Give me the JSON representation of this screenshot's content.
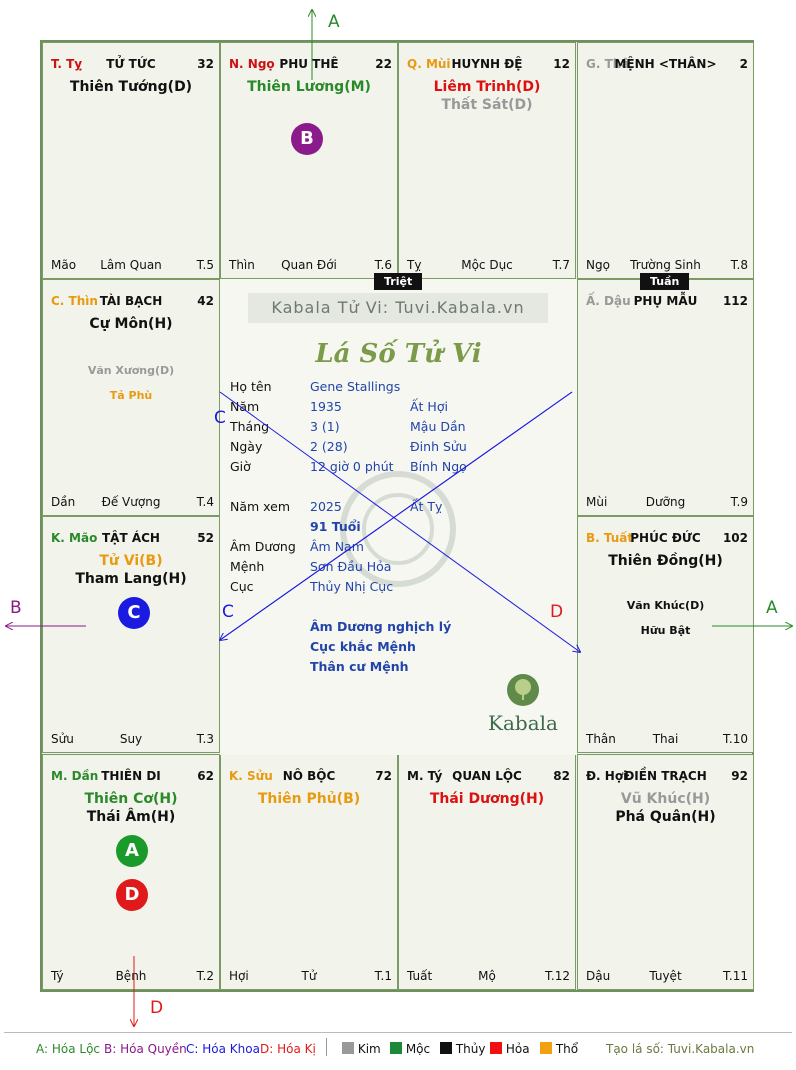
{
  "cells": [
    {
      "id": "ty",
      "pos": [
        0,
        0
      ],
      "prefix": "T. Tỵ",
      "prefix_color": "#cc1111",
      "palace": "TỬ TỨC",
      "num": "32",
      "stars": [
        {
          "t": "Thiên Tướng(D)",
          "c": "#111111"
        }
      ],
      "minors": [],
      "foot": [
        "Mão",
        "Lâm Quan",
        "T.5"
      ]
    },
    {
      "id": "ngo",
      "pos": [
        1,
        0
      ],
      "prefix": "N. Ngọ",
      "prefix_color": "#cc1111",
      "palace": "PHU THÊ",
      "num": "22",
      "stars": [
        {
          "t": "Thiên Lương(M)",
          "c": "#2a8a2a"
        }
      ],
      "minors": [],
      "foot": [
        "Thìn",
        "Quan Đới",
        "T.6"
      ]
    },
    {
      "id": "mui",
      "pos": [
        2,
        0
      ],
      "prefix": "Q. Mùi",
      "prefix_color": "#e89a10",
      "palace": "HUYNH ĐỆ",
      "num": "12",
      "stars": [
        {
          "t": "Liêm Trinh(D)",
          "c": "#dd1111"
        },
        {
          "t": "Thất Sát(D)",
          "c": "#999999"
        }
      ],
      "minors": [],
      "foot": [
        "Tỵ",
        "Mộc Dục",
        "T.7"
      ]
    },
    {
      "id": "than",
      "pos": [
        3,
        0
      ],
      "prefix": "G. Thâ",
      "prefix_color": "#999999",
      "palace": "MỆNH <THÂN>",
      "num": "2",
      "stars": [],
      "minors": [],
      "foot": [
        "Ngọ",
        "Trường Sinh",
        "T.8"
      ]
    },
    {
      "id": "thin",
      "pos": [
        0,
        1
      ],
      "prefix": "C. Thìn",
      "prefix_color": "#e89a10",
      "palace": "TÀI BẠCH",
      "num": "42",
      "stars": [
        {
          "t": "Cự Môn(H)",
          "c": "#111111"
        }
      ],
      "minors": [
        {
          "t": "Văn Xương(D)",
          "c": "#999999"
        },
        {
          "t": "Tả Phù",
          "c": "#e89a10"
        }
      ],
      "foot": [
        "Dần",
        "Đế Vượng",
        "T.4"
      ]
    },
    {
      "id": "dau",
      "pos": [
        3,
        1
      ],
      "prefix": "Ấ. Dậu",
      "prefix_color": "#999999",
      "palace": "PHỤ MẪU",
      "num": "112",
      "stars": [],
      "minors": [],
      "foot": [
        "Mùi",
        "Dưỡng",
        "T.9"
      ]
    },
    {
      "id": "mao",
      "pos": [
        0,
        2
      ],
      "prefix": "K. Mão",
      "prefix_color": "#2a8a2a",
      "palace": "TẬT ÁCH",
      "num": "52",
      "stars": [
        {
          "t": "Tử Vi(B)",
          "c": "#e89a10"
        },
        {
          "t": "Tham Lang(H)",
          "c": "#111111"
        }
      ],
      "minors": [],
      "foot": [
        "Sửu",
        "Suy",
        "T.3"
      ]
    },
    {
      "id": "tuat",
      "pos": [
        3,
        2
      ],
      "prefix": "B. Tuất",
      "prefix_color": "#e89a10",
      "palace": "PHÚC ĐỨC",
      "num": "102",
      "stars": [
        {
          "t": "Thiên Đồng(H)",
          "c": "#111111"
        }
      ],
      "minors": [
        {
          "t": "Văn Khúc(D)",
          "c": "#111111"
        },
        {
          "t": "Hữu Bật",
          "c": "#111111"
        }
      ],
      "foot": [
        "Thân",
        "Thai",
        "T.10"
      ]
    },
    {
      "id": "dan",
      "pos": [
        0,
        3
      ],
      "prefix": "M. Dần",
      "prefix_color": "#2a8a2a",
      "palace": "THIÊN DI",
      "num": "62",
      "stars": [
        {
          "t": "Thiên Cơ(H)",
          "c": "#2a8a2a"
        },
        {
          "t": "Thái Âm(H)",
          "c": "#111111"
        }
      ],
      "minors": [],
      "foot": [
        "Tý",
        "Bệnh",
        "T.2"
      ]
    },
    {
      "id": "suu",
      "pos": [
        1,
        3
      ],
      "prefix": "K. Sửu",
      "prefix_color": "#e89a10",
      "palace": "NÔ BỘC",
      "num": "72",
      "stars": [
        {
          "t": "Thiên Phủ(B)",
          "c": "#e89a10"
        }
      ],
      "minors": [],
      "foot": [
        "Hợi",
        "Tử",
        "T.1"
      ]
    },
    {
      "id": "tys",
      "pos": [
        2,
        3
      ],
      "prefix": "M. Tý",
      "prefix_color": "#111111",
      "palace": "QUAN LỘC",
      "num": "82",
      "stars": [
        {
          "t": "Thái Dương(H)",
          "c": "#dd1111"
        }
      ],
      "minors": [],
      "foot": [
        "Tuất",
        "Mộ",
        "T.12"
      ]
    },
    {
      "id": "hoi",
      "pos": [
        3,
        3
      ],
      "prefix": "Đ. Hợi",
      "prefix_color": "#111111",
      "palace": "ĐIỀN TRẠCH",
      "num": "92",
      "stars": [
        {
          "t": "Vũ Khúc(H)",
          "c": "#999999"
        },
        {
          "t": "Phá Quân(H)",
          "c": "#111111"
        }
      ],
      "minors": [],
      "foot": [
        "Dậu",
        "Tuyệt",
        "T.11"
      ]
    }
  ],
  "tags": {
    "triet": "Triệt",
    "tuan": "Tuần"
  },
  "center": {
    "watermark": "Kabala Tử Vi: Tuvi.Kabala.vn",
    "title": "Lá Số Tử Vi",
    "rows": [
      {
        "k": "Họ tên",
        "v1": "Gene Stallings",
        "v2": ""
      },
      {
        "k": "Năm",
        "v1": "1935",
        "v2": "Ất Hợi"
      },
      {
        "k": "Tháng",
        "v1": "3  (1)",
        "v2": "Mậu Dần"
      },
      {
        "k": "Ngày",
        "v1": "2  (28)",
        "v2": "Đinh Sửu"
      },
      {
        "k": "Giờ",
        "v1": "12 giờ 0 phút",
        "v2": "Bính Ngọ"
      },
      {
        "k": "Năm xem",
        "v1": "2025",
        "v2": "Ất Tỵ"
      },
      {
        "k": "",
        "v1": "91 Tuổi",
        "v2": ""
      },
      {
        "k": "Âm Dương",
        "v1": "Âm Nam",
        "v2": ""
      },
      {
        "k": "Mệnh",
        "v1": "Sơn Đầu Hỏa",
        "v2": ""
      },
      {
        "k": "Cục",
        "v1": "Thủy Nhị Cục",
        "v2": ""
      }
    ],
    "notes": [
      "Âm Dương nghịch lý",
      "Cục khắc Mệnh",
      "Thân cư Mệnh"
    ],
    "logo_text": "Kabala"
  },
  "badges": [
    {
      "letter": "B",
      "color": "#8b1a8b"
    },
    {
      "letter": "C",
      "color": "#1a1ae0"
    },
    {
      "letter": "A",
      "color": "#1a9a2a"
    },
    {
      "letter": "D",
      "color": "#e01a1a"
    }
  ],
  "arrow_letters": {
    "a": "A",
    "b": "B",
    "c": "C",
    "d": "D"
  },
  "legend": {
    "items": [
      {
        "t": "A: Hóa Lộc",
        "c": "#2a8a2a"
      },
      {
        "t": "B: Hóa Quyền",
        "c": "#8b1a8b"
      },
      {
        "t": "C: Hóa Khoa",
        "c": "#1a1ae0"
      },
      {
        "t": "D: Hóa Kị",
        "c": "#e01a1a"
      }
    ],
    "elements": [
      {
        "t": "Kim",
        "c": "#999999"
      },
      {
        "t": "Mộc",
        "c": "#1a8a3a"
      },
      {
        "t": "Thủy",
        "c": "#111111"
      },
      {
        "t": "Hỏa",
        "c": "#ee1111"
      },
      {
        "t": "Thổ",
        "c": "#f0a010"
      }
    ],
    "credit": "Tạo lá số: Tuvi.Kabala.vn"
  }
}
